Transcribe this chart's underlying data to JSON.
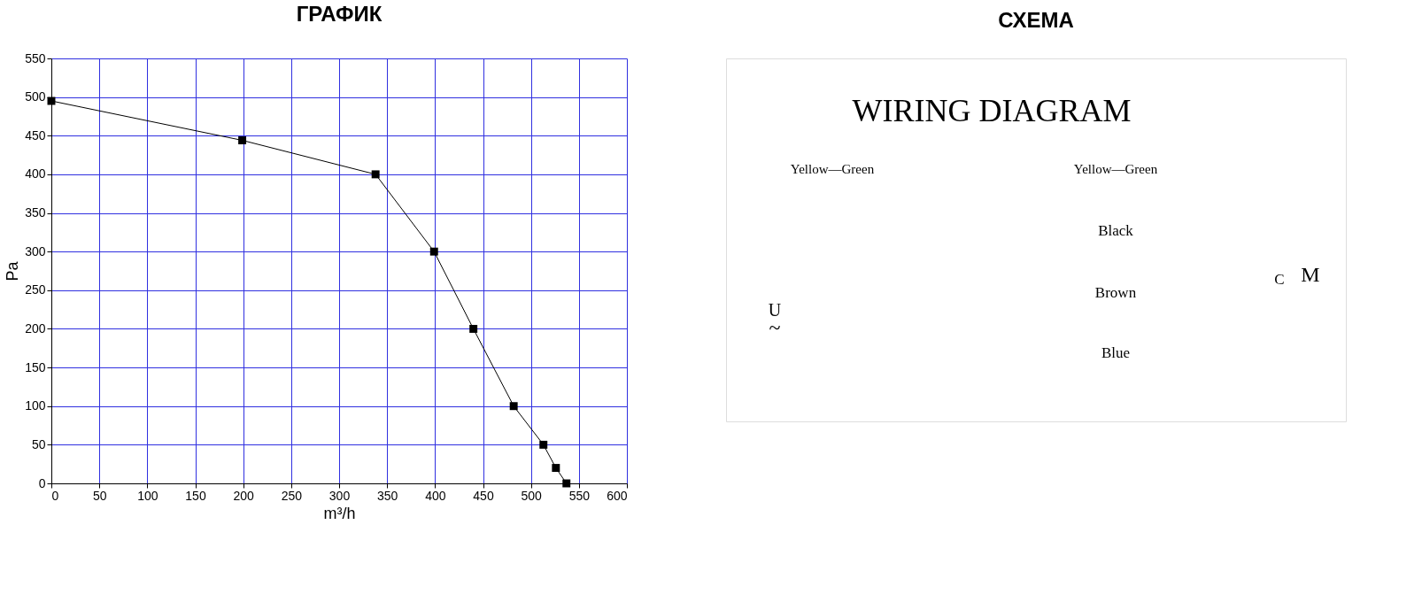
{
  "chart_data": [
    {
      "type": "line",
      "title": "ГРАФИК",
      "xlabel": "m³/h",
      "ylabel": "Pa",
      "x": [
        0,
        199,
        338,
        399,
        440,
        482,
        513,
        526,
        537
      ],
      "series": [
        {
          "color": "#000000",
          "values": [
            495,
            444,
            400,
            300,
            200,
            100,
            50,
            20,
            0
          ]
        }
      ],
      "xlim": [
        0,
        600
      ],
      "xticks": [
        0,
        50,
        100,
        150,
        200,
        250,
        300,
        350,
        400,
        450,
        500,
        550,
        600
      ],
      "ylim": [
        0,
        550
      ],
      "yticks": [
        0,
        50,
        100,
        150,
        200,
        250,
        300,
        350,
        400,
        450,
        500,
        550
      ],
      "grid": true,
      "marker": "square",
      "line_style": "solid"
    },
    {
      "type": "other",
      "title": "СХЕМА",
      "annotations": [
        "WIRING DIAGRAM",
        "Yellow—Green",
        "Yellow—Green",
        "Black",
        "Brown",
        "Blue",
        "C",
        "M",
        "U",
        "~"
      ]
    }
  ]
}
